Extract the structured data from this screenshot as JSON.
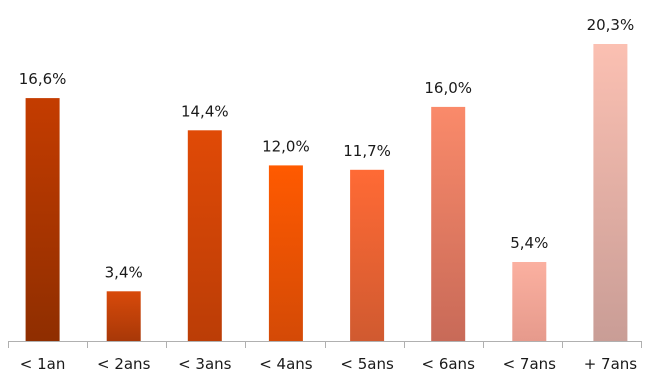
{
  "chart_data": {
    "type": "bar",
    "categories": [
      "< 1an",
      "< 2ans",
      "< 3ans",
      "< 4ans",
      "< 5ans",
      "< 6ans",
      "< 7ans",
      "+ 7ans"
    ],
    "values": [
      16.6,
      3.4,
      14.4,
      12.0,
      11.7,
      16.0,
      5.4,
      20.3
    ],
    "data_labels": [
      "16,6%",
      "3,4%",
      "14,4%",
      "12,0%",
      "11,7%",
      "16,0%",
      "5,4%",
      "20,3%"
    ],
    "title": "",
    "xlabel": "",
    "ylabel": "",
    "ylim": [
      0,
      20.3
    ],
    "grid": false,
    "bar_gradients": [
      [
        "#c43c00",
        "#8f2e00"
      ],
      [
        "#d84a0a",
        "#a83808"
      ],
      [
        "#e04a06",
        "#bb3d06"
      ],
      [
        "#ff5a00",
        "#d44a06"
      ],
      [
        "#ff6a35",
        "#d05a30"
      ],
      [
        "#fa8a6a",
        "#c86a58"
      ],
      [
        "#fbb0a0",
        "#e69a8c"
      ],
      [
        "#fbc0b2",
        "#c99d96"
      ]
    ]
  }
}
